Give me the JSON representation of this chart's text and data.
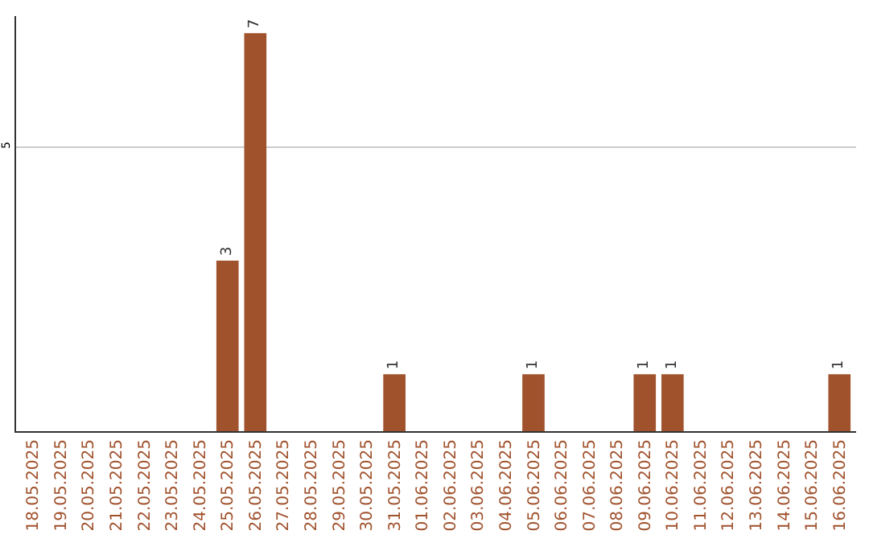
{
  "chart_data": {
    "type": "bar",
    "categories": [
      "18.05.2025",
      "19.05.2025",
      "20.05.2025",
      "21.05.2025",
      "22.05.2025",
      "23.05.2025",
      "24.05.2025",
      "25.05.2025",
      "26.05.2025",
      "27.05.2025",
      "28.05.2025",
      "29.05.2025",
      "30.05.2025",
      "31.05.2025",
      "01.06.2025",
      "02.06.2025",
      "03.06.2025",
      "04.06.2025",
      "05.06.2025",
      "06.06.2025",
      "07.06.2025",
      "08.06.2025",
      "09.06.2025",
      "10.06.2025",
      "11.06.2025",
      "12.06.2025",
      "13.06.2025",
      "14.06.2025",
      "15.06.2025",
      "16.06.2025"
    ],
    "values": [
      0,
      0,
      0,
      0,
      0,
      0,
      0,
      3,
      7,
      0,
      0,
      0,
      0,
      1,
      0,
      0,
      0,
      0,
      1,
      0,
      0,
      0,
      1,
      1,
      0,
      0,
      0,
      0,
      0,
      1
    ],
    "value_labels": [
      null,
      null,
      null,
      null,
      null,
      null,
      null,
      "3",
      "7",
      null,
      null,
      null,
      null,
      "1",
      null,
      null,
      null,
      null,
      "1",
      null,
      null,
      null,
      "1",
      "1",
      null,
      null,
      null,
      null,
      null,
      "1"
    ],
    "color": "#a0522d",
    "ylim": [
      0,
      7.3
    ],
    "yticks": [
      5
    ],
    "grid": "y",
    "legend": false
  }
}
